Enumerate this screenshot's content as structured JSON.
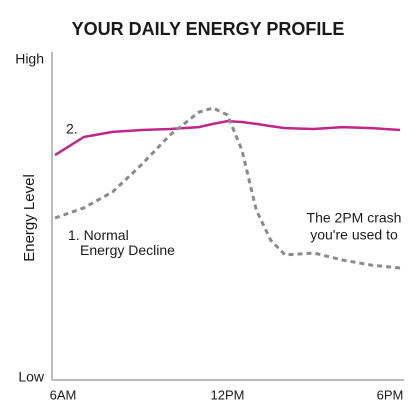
{
  "chart_data": {
    "type": "line",
    "title": "YOUR DAILY ENERGY PROFILE",
    "y_label": "Energy Level",
    "x": [
      6,
      7,
      8,
      9,
      10,
      11,
      11.5,
      12,
      12.5,
      13,
      13.5,
      14,
      15,
      16,
      17,
      18
    ],
    "series": [
      {
        "name": "2.",
        "color": "#c0268a",
        "dashed": false,
        "values": [
          70.1,
          75.8,
          77.4,
          78,
          78.3,
          78.9,
          79.9,
          80.8,
          80.5,
          79.9,
          79.2,
          78.6,
          78.3,
          78.9,
          78.6,
          78
        ]
      },
      {
        "name": "1. Normal Energy Decline",
        "color": "#8a8a8a",
        "dashed": true,
        "values": [
          50.3,
          53.5,
          58.5,
          67,
          76.4,
          83.6,
          84.9,
          82.7,
          71.7,
          52.8,
          43.4,
          38.7,
          39.3,
          37.1,
          35.5,
          34.6
        ]
      }
    ],
    "annotations": [
      "The 2PM crash",
      "you're used to"
    ],
    "xlim": [
      6,
      18
    ],
    "xticks": [
      {
        "value": 6,
        "label": "6AM"
      },
      {
        "value": 12,
        "label": "12PM"
      },
      {
        "value": 18,
        "label": "6PM"
      }
    ],
    "ylim": [
      0,
      100
    ],
    "yticks": [
      {
        "value": 0,
        "label": "Low"
      },
      {
        "value": 100,
        "label": "High"
      }
    ]
  }
}
